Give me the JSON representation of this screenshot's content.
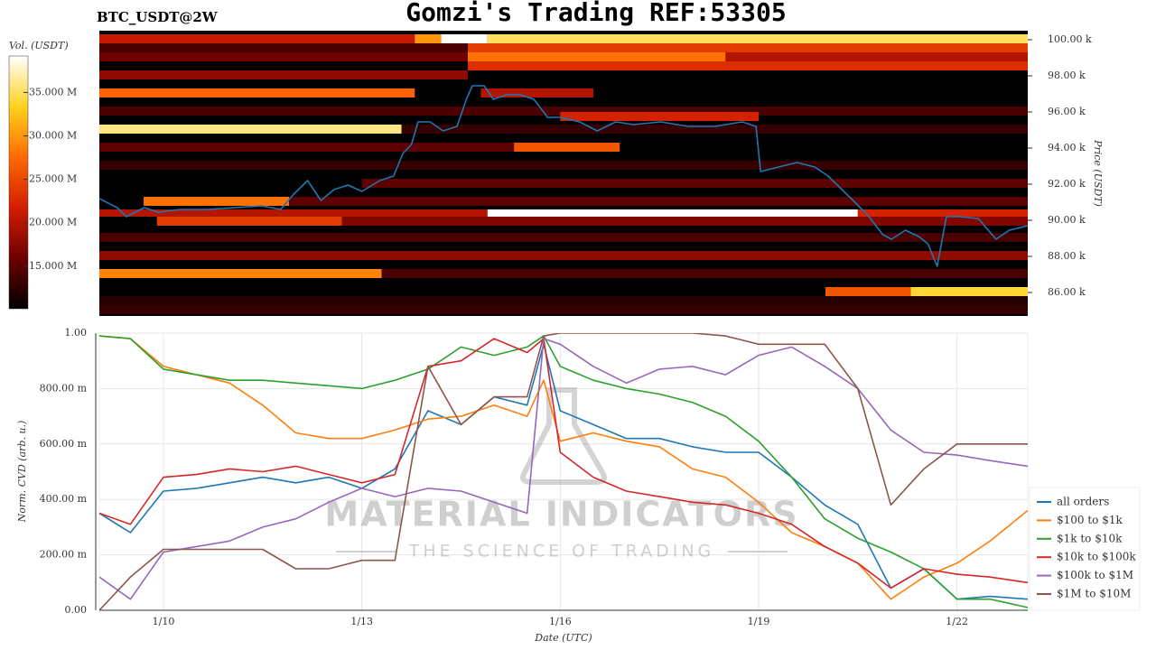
{
  "chart_data": [
    {
      "type": "heatmap",
      "title": "Gomzi's Trading REF:53305",
      "subtitle": "BTC_USDT@2W",
      "ylabel": "Price (USDT)",
      "ylim": [
        84.7,
        100.5
      ],
      "xlim": [
        9.03,
        23.07
      ],
      "yticks": [
        {
          "value": 86,
          "label": "86.00 k"
        },
        {
          "value": 88,
          "label": "88.00 k"
        },
        {
          "value": 90,
          "label": "90.00 k"
        },
        {
          "value": 92,
          "label": "92.00 k"
        },
        {
          "value": 94,
          "label": "94.00 k"
        },
        {
          "value": 96,
          "label": "96.00 k"
        },
        {
          "value": 98,
          "label": "98.00 k"
        },
        {
          "value": 100,
          "label": "100.00 k"
        }
      ],
      "background": "#000000",
      "colorbar": {
        "label": "Vol. (USDT)",
        "lim": [
          10.1,
          39.2
        ],
        "colors": [
          "#000000",
          "#6e0000",
          "#d21e00",
          "#ff6a00",
          "#ffd21e",
          "#ffffff"
        ],
        "ticks": [
          {
            "value": 15,
            "label": "15.000 M"
          },
          {
            "value": 20,
            "label": "20.000 M"
          },
          {
            "value": 25,
            "label": "25.000 M"
          },
          {
            "value": 30,
            "label": "30.000 M"
          },
          {
            "value": 35,
            "label": "35.000 M"
          }
        ]
      },
      "cells": [
        {
          "low": 99.8,
          "high": 100.3,
          "start": 9.03,
          "end": 13.8,
          "value": 21
        },
        {
          "low": 99.8,
          "high": 100.3,
          "start": 13.8,
          "end": 14.2,
          "value": 30
        },
        {
          "low": 99.8,
          "high": 100.3,
          "start": 14.2,
          "end": 14.9,
          "value": 39
        },
        {
          "low": 99.8,
          "high": 100.3,
          "start": 14.9,
          "end": 23.07,
          "value": 35
        },
        {
          "low": 99.3,
          "high": 99.8,
          "start": 14.6,
          "end": 23.07,
          "value": 24
        },
        {
          "low": 98.8,
          "high": 99.3,
          "start": 14.6,
          "end": 18.5,
          "value": 28
        },
        {
          "low": 98.8,
          "high": 99.3,
          "start": 18.5,
          "end": 23.07,
          "value": 20
        },
        {
          "low": 98.3,
          "high": 98.8,
          "start": 14.6,
          "end": 23.07,
          "value": 23
        },
        {
          "low": 99.3,
          "high": 99.8,
          "start": 9.03,
          "end": 14.6,
          "value": 14
        },
        {
          "low": 98.8,
          "high": 99.3,
          "start": 9.03,
          "end": 14.6,
          "value": 16
        },
        {
          "low": 97.8,
          "high": 98.3,
          "start": 9.03,
          "end": 14.6,
          "value": 18
        },
        {
          "low": 96.8,
          "high": 97.3,
          "start": 9.03,
          "end": 13.8,
          "value": 27
        },
        {
          "low": 96.8,
          "high": 97.3,
          "start": 14.8,
          "end": 16.5,
          "value": 20
        },
        {
          "low": 95.8,
          "high": 96.3,
          "start": 9.03,
          "end": 23.07,
          "value": 14
        },
        {
          "low": 95.5,
          "high": 96.0,
          "start": 16.0,
          "end": 19.0,
          "value": 22
        },
        {
          "low": 94.8,
          "high": 95.3,
          "start": 9.03,
          "end": 13.6,
          "value": 36
        },
        {
          "low": 94.8,
          "high": 95.3,
          "start": 13.6,
          "end": 23.07,
          "value": 13
        },
        {
          "low": 93.8,
          "high": 94.3,
          "start": 15.3,
          "end": 16.9,
          "value": 26
        },
        {
          "low": 93.8,
          "high": 94.3,
          "start": 9.03,
          "end": 15.3,
          "value": 15
        },
        {
          "low": 92.8,
          "high": 93.3,
          "start": 9.03,
          "end": 23.07,
          "value": 13
        },
        {
          "low": 91.8,
          "high": 92.3,
          "start": 13.0,
          "end": 23.07,
          "value": 15
        },
        {
          "low": 90.8,
          "high": 91.3,
          "start": 9.7,
          "end": 11.9,
          "value": 28
        },
        {
          "low": 90.8,
          "high": 91.3,
          "start": 11.9,
          "end": 23.07,
          "value": 15
        },
        {
          "low": 90.2,
          "high": 90.6,
          "start": 9.03,
          "end": 14.9,
          "value": 20
        },
        {
          "low": 90.2,
          "high": 90.6,
          "start": 14.9,
          "end": 20.5,
          "value": 40
        },
        {
          "low": 90.2,
          "high": 90.6,
          "start": 20.5,
          "end": 23.07,
          "value": 22
        },
        {
          "low": 89.7,
          "high": 90.2,
          "start": 9.9,
          "end": 12.7,
          "value": 24
        },
        {
          "low": 89.7,
          "high": 90.2,
          "start": 12.7,
          "end": 23.07,
          "value": 17
        },
        {
          "low": 88.8,
          "high": 89.3,
          "start": 9.03,
          "end": 23.07,
          "value": 14
        },
        {
          "low": 87.8,
          "high": 88.3,
          "start": 9.03,
          "end": 23.07,
          "value": 18
        },
        {
          "low": 86.8,
          "high": 87.3,
          "start": 9.03,
          "end": 13.3,
          "value": 29
        },
        {
          "low": 86.8,
          "high": 87.3,
          "start": 13.3,
          "end": 23.07,
          "value": 14
        },
        {
          "low": 85.8,
          "high": 86.3,
          "start": 20.01,
          "end": 21.3,
          "value": 26
        },
        {
          "low": 85.8,
          "high": 86.3,
          "start": 21.3,
          "end": 23.07,
          "value": 34
        },
        {
          "low": 85.3,
          "high": 85.8,
          "start": 9.03,
          "end": 23.07,
          "value": 12
        },
        {
          "low": 84.8,
          "high": 85.3,
          "start": 9.03,
          "end": 23.07,
          "value": 13
        }
      ],
      "x": [
        9.03,
        9.3,
        9.44,
        9.71,
        9.92,
        10.26,
        10.67,
        11.08,
        11.49,
        11.77,
        11.97,
        12.18,
        12.38,
        12.58,
        12.79,
        13.0,
        13.27,
        13.48,
        13.62,
        13.75,
        13.85,
        14.03,
        14.23,
        14.44,
        14.58,
        14.67,
        14.85,
        14.99,
        15.19,
        15.4,
        15.6,
        15.81,
        16.01,
        16.29,
        16.56,
        16.84,
        17.11,
        17.52,
        17.93,
        18.34,
        18.75,
        18.96,
        19.03,
        19.3,
        19.58,
        19.85,
        20.05,
        20.26,
        20.47,
        20.67,
        20.88,
        21.01,
        21.22,
        21.42,
        21.56,
        21.7,
        21.84,
        22.04,
        22.32,
        22.59,
        22.79,
        23.07
      ],
      "series": [
        {
          "color": "#1f77b4",
          "values": [
            91.2,
            90.7,
            90.2,
            90.7,
            90.45,
            90.6,
            90.6,
            90.7,
            90.8,
            90.6,
            91.45,
            92.2,
            91.1,
            91.7,
            91.95,
            91.6,
            92.2,
            92.45,
            93.7,
            94.2,
            95.45,
            95.45,
            94.95,
            95.2,
            96.7,
            97.45,
            97.45,
            96.7,
            96.95,
            96.95,
            96.7,
            95.7,
            95.7,
            95.45,
            94.95,
            95.45,
            95.3,
            95.45,
            95.2,
            95.2,
            95.45,
            95.2,
            92.7,
            92.95,
            93.2,
            92.95,
            92.45,
            91.7,
            90.95,
            90.2,
            89.2,
            88.95,
            89.45,
            89.1,
            88.7,
            87.45,
            90.2,
            90.2,
            90.1,
            88.95,
            89.45,
            89.7
          ]
        }
      ]
    },
    {
      "type": "line",
      "ylabel": "Norm. CVD (arb. u.)",
      "xlabel": "Date (UTC)",
      "grid": true,
      "legend": "right",
      "xlim": [
        9.03,
        23.07
      ],
      "ylim": [
        0,
        1
      ],
      "xticks": [
        {
          "value": 10,
          "label": "1/10"
        },
        {
          "value": 13,
          "label": "1/13"
        },
        {
          "value": 16,
          "label": "1/16"
        },
        {
          "value": 19,
          "label": "1/19"
        },
        {
          "value": 22,
          "label": "1/22"
        }
      ],
      "yticks": [
        {
          "value": 0,
          "label": "0.00"
        },
        {
          "value": 0.2,
          "label": "200.00 m"
        },
        {
          "value": 0.4,
          "label": "400.00 m"
        },
        {
          "value": 0.6,
          "label": "600.00 m"
        },
        {
          "value": 0.8,
          "label": "800.00 m"
        },
        {
          "value": 1,
          "label": "1.00"
        }
      ],
      "x": [
        9.03,
        9.5,
        10,
        10.5,
        11,
        11.5,
        12,
        12.5,
        13,
        13.5,
        14,
        14.5,
        15,
        15.5,
        15.75,
        16,
        16.5,
        17,
        17.5,
        18,
        18.5,
        19,
        19.5,
        20,
        20.5,
        21,
        21.5,
        22,
        22.5,
        23.07
      ],
      "series": [
        {
          "name": "all orders",
          "color": "#1f77b4",
          "values": [
            0.35,
            0.28,
            0.43,
            0.44,
            0.46,
            0.48,
            0.46,
            0.48,
            0.44,
            0.51,
            0.72,
            0.67,
            0.77,
            0.74,
            0.96,
            0.72,
            0.67,
            0.62,
            0.62,
            0.59,
            0.57,
            0.57,
            0.48,
            0.38,
            0.31,
            0.08,
            0.15,
            0.04,
            0.05,
            0.04
          ]
        },
        {
          "name": "$100 to $1k",
          "color": "#ff7f0e",
          "values": [
            0.99,
            0.98,
            0.88,
            0.85,
            0.82,
            0.74,
            0.64,
            0.62,
            0.62,
            0.65,
            0.69,
            0.7,
            0.74,
            0.7,
            0.83,
            0.61,
            0.64,
            0.61,
            0.59,
            0.51,
            0.48,
            0.39,
            0.28,
            0.23,
            0.17,
            0.04,
            0.12,
            0.17,
            0.25,
            0.36
          ]
        },
        {
          "name": "$1k to $10k",
          "color": "#2ca02c",
          "values": [
            0.99,
            0.98,
            0.87,
            0.85,
            0.83,
            0.83,
            0.82,
            0.81,
            0.8,
            0.83,
            0.87,
            0.95,
            0.92,
            0.95,
            0.99,
            0.88,
            0.83,
            0.8,
            0.78,
            0.75,
            0.7,
            0.61,
            0.48,
            0.33,
            0.26,
            0.21,
            0.15,
            0.04,
            0.04,
            0.01
          ]
        },
        {
          "name": "$10k to $100k",
          "color": "#d62728",
          "values": [
            0.35,
            0.31,
            0.48,
            0.49,
            0.51,
            0.5,
            0.52,
            0.49,
            0.46,
            0.49,
            0.88,
            0.9,
            0.98,
            0.93,
            0.98,
            0.57,
            0.48,
            0.43,
            0.41,
            0.39,
            0.38,
            0.35,
            0.31,
            0.23,
            0.17,
            0.08,
            0.15,
            0.13,
            0.12,
            0.1
          ]
        },
        {
          "name": "$100k to $1M",
          "color": "#9467bd",
          "values": [
            0.12,
            0.04,
            0.21,
            0.23,
            0.25,
            0.3,
            0.33,
            0.39,
            0.44,
            0.41,
            0.44,
            0.43,
            0.39,
            0.35,
            0.98,
            0.96,
            0.88,
            0.82,
            0.87,
            0.88,
            0.85,
            0.92,
            0.95,
            0.88,
            0.8,
            0.65,
            0.57,
            0.56,
            0.54,
            0.52
          ]
        },
        {
          "name": "$1M to $10M",
          "color": "#8c564b",
          "values": [
            0,
            0.12,
            0.22,
            0.22,
            0.22,
            0.22,
            0.15,
            0.15,
            0.18,
            0.18,
            0.88,
            0.67,
            0.77,
            0.77,
            0.99,
            1,
            1,
            1,
            1,
            1,
            0.99,
            0.96,
            0.96,
            0.96,
            0.8,
            0.38,
            0.51,
            0.6,
            0.6,
            0.6
          ]
        }
      ]
    }
  ],
  "watermark": {
    "title": "MATERIAL INDICATORS",
    "subtitle": "THE SCIENCE OF TRADING"
  }
}
